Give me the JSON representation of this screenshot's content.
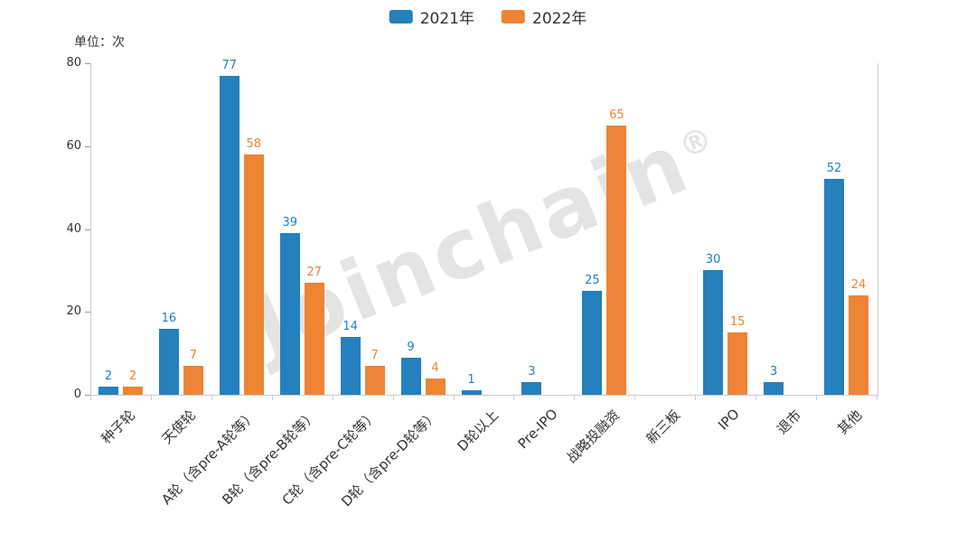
{
  "watermark": {
    "text": "Joinchain",
    "reg": "®"
  },
  "chart_data": {
    "type": "bar",
    "title": "",
    "unit": "单位：次",
    "categories": [
      "种子轮",
      "天使轮",
      "A轮（含pre-A轮等）",
      "B轮（含pre-B轮等）",
      "C轮（含pre-C轮等）",
      "D轮（含pre-D轮等）",
      "D轮以上",
      "Pre-IPO",
      "战略投融资",
      "新三板",
      "IPO",
      "退市",
      "其他"
    ],
    "series": [
      {
        "name": "2021年",
        "color": "#2580bd",
        "values": [
          2,
          16,
          77,
          39,
          14,
          9,
          1,
          3,
          25,
          null,
          30,
          3,
          52
        ]
      },
      {
        "name": "2022年",
        "color": "#ee8435",
        "values": [
          2,
          7,
          58,
          27,
          7,
          4,
          null,
          null,
          65,
          null,
          15,
          null,
          24
        ]
      }
    ],
    "ylim": [
      0,
      80
    ],
    "yticks": [
      0,
      20,
      40,
      60,
      80
    ],
    "legend_position": "top",
    "grid": false
  }
}
